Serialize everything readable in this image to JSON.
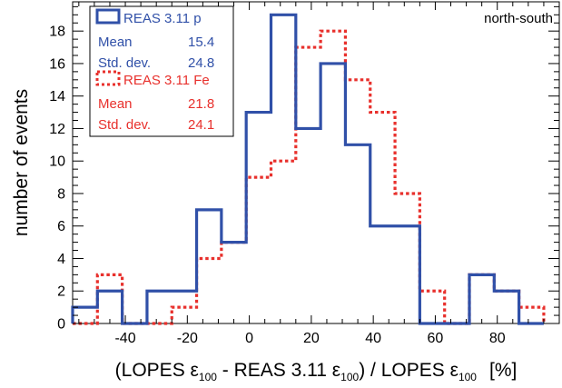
{
  "chart_data": {
    "type": "histogram",
    "annotation": "north-south",
    "xlabel": {
      "p1": "(LOPES ",
      "eps": "ε",
      "sub": "100",
      "p2": " - REAS 3.11 ",
      "p3": ") / LOPES ",
      "p4": "[%]"
    },
    "ylabel": "number of events",
    "xlim": [
      -57,
      100
    ],
    "ylim": [
      0,
      19.8
    ],
    "x_ticks": [
      -40,
      -20,
      0,
      20,
      40,
      60,
      80
    ],
    "y_ticks": [
      0,
      2,
      4,
      6,
      8,
      10,
      12,
      14,
      16,
      18
    ],
    "bin_edges": [
      -57,
      -49,
      -41,
      -33,
      -25,
      -17,
      -9,
      -1,
      7,
      15,
      23,
      31,
      39,
      47,
      55,
      63,
      71,
      79,
      87,
      95
    ],
    "series": [
      {
        "name": "REAS 3.11 p",
        "color": "#3050a8",
        "style": "solid",
        "counts": [
          1,
          2,
          0,
          2,
          2,
          7,
          5,
          13,
          19,
          12,
          16,
          11,
          6,
          6,
          0,
          0,
          3,
          2,
          0
        ],
        "stats": {
          "mean_label": "Mean",
          "mean": "15.4",
          "std_label": "Std. dev.",
          "std": "24.8"
        }
      },
      {
        "name": "REAS 3.11 Fe",
        "color": "#e8302c",
        "style": "dotted",
        "counts": [
          0,
          3,
          0,
          0,
          1,
          4,
          5,
          9,
          10,
          17,
          18,
          15,
          13,
          8,
          2,
          0,
          3,
          2,
          1
        ],
        "stats": {
          "mean_label": "Mean",
          "mean": "21.8",
          "std_label": "Std. dev.",
          "std": "24.1"
        }
      }
    ]
  }
}
